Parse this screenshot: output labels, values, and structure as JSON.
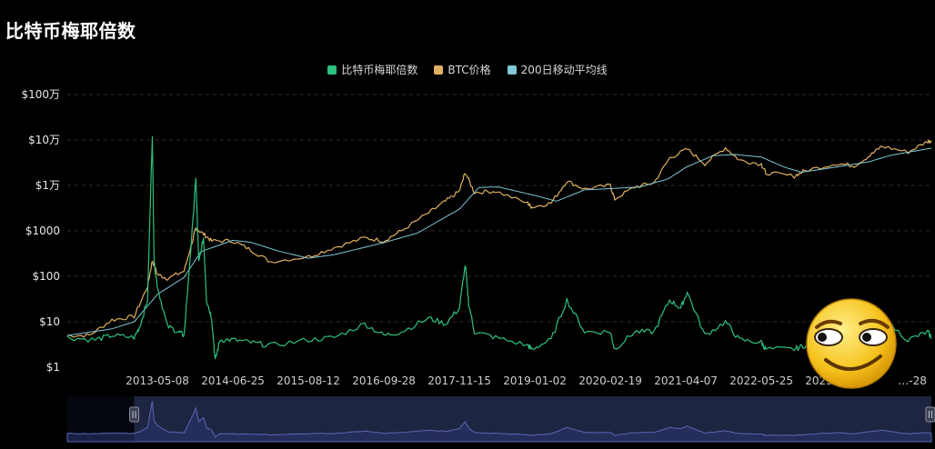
{
  "page": {
    "title": "比特币梅耶倍数"
  },
  "colors": {
    "mayer": "#2ec27e",
    "price": "#e0b060",
    "ma200": "#7fc8d4",
    "grid": "#2a2a2a",
    "navigator_fill": "#1d2540",
    "navigator_line": "#5b66b5"
  },
  "legend": [
    {
      "label": "比特币梅耶倍数",
      "color": "#2ec27e"
    },
    {
      "label": "BTC价格",
      "color": "#e0b060"
    },
    {
      "label": "200日移动平均线",
      "color": "#7fc8d4"
    }
  ],
  "chart_data": {
    "type": "line",
    "y_scale": "log",
    "ylim": [
      1,
      1000000
    ],
    "y_ticks": [
      {
        "value": 1000000,
        "label": "$100万"
      },
      {
        "value": 100000,
        "label": "$10万"
      },
      {
        "value": 10000,
        "label": "$1万"
      },
      {
        "value": 1000,
        "label": "$1000"
      },
      {
        "value": 100,
        "label": "$100"
      },
      {
        "value": 10,
        "label": "$10"
      },
      {
        "value": 1,
        "label": "$1"
      }
    ],
    "x_range": [
      "2012-01-01",
      "2024-12-10"
    ],
    "x_ticks": [
      "2013-05-08",
      "2014-06-25",
      "2015-08-12",
      "2016-09-28",
      "2017-11-15",
      "2019-01-02",
      "2020-02-19",
      "2021-04-07",
      "2022-05-25",
      "2023-07-12",
      "2024-08-28"
    ],
    "x_tick_labels": [
      "2013-05-08",
      "2014-06-25",
      "2015-08-12",
      "2016-09-28",
      "2017-11-15",
      "2019-01-02",
      "2020-02-19",
      "2021-04-07",
      "2022-05-25",
      "2023-07-12",
      "…-28"
    ],
    "series": [
      {
        "name": "BTC价格",
        "points": [
          [
            "2012-01-01",
            5
          ],
          [
            "2012-05-01",
            5
          ],
          [
            "2012-09-01",
            11
          ],
          [
            "2013-01-01",
            13
          ],
          [
            "2013-03-15",
            60
          ],
          [
            "2013-04-10",
            220
          ],
          [
            "2013-05-08",
            110
          ],
          [
            "2013-07-01",
            90
          ],
          [
            "2013-10-01",
            130
          ],
          [
            "2013-11-20",
            700
          ],
          [
            "2013-12-04",
            1150
          ],
          [
            "2014-01-15",
            850
          ],
          [
            "2014-03-01",
            600
          ],
          [
            "2014-06-25",
            600
          ],
          [
            "2014-10-01",
            380
          ],
          [
            "2015-01-15",
            210
          ],
          [
            "2015-08-12",
            270
          ],
          [
            "2016-01-01",
            430
          ],
          [
            "2016-06-15",
            700
          ],
          [
            "2016-09-28",
            605
          ],
          [
            "2017-01-01",
            1000
          ],
          [
            "2017-06-01",
            2500
          ],
          [
            "2017-09-01",
            4500
          ],
          [
            "2017-11-15",
            7500
          ],
          [
            "2017-12-17",
            19500
          ],
          [
            "2018-02-05",
            7000
          ],
          [
            "2018-06-01",
            7500
          ],
          [
            "2018-11-25",
            4000
          ],
          [
            "2018-12-15",
            3300
          ],
          [
            "2019-04-01",
            4100
          ],
          [
            "2019-06-26",
            12500
          ],
          [
            "2019-10-01",
            8300
          ],
          [
            "2020-02-19",
            10000
          ],
          [
            "2020-03-13",
            5000
          ],
          [
            "2020-07-01",
            9200
          ],
          [
            "2020-10-15",
            11500
          ],
          [
            "2021-01-08",
            40000
          ],
          [
            "2021-04-14",
            63000
          ],
          [
            "2021-07-20",
            30000
          ],
          [
            "2021-11-10",
            68000
          ],
          [
            "2022-01-24",
            36000
          ],
          [
            "2022-05-25",
            29500
          ],
          [
            "2022-06-18",
            19000
          ],
          [
            "2022-11-21",
            16000
          ],
          [
            "2023-01-15",
            21000
          ],
          [
            "2023-07-12",
            30500
          ],
          [
            "2023-10-15",
            27000
          ],
          [
            "2024-01-10",
            46000
          ],
          [
            "2024-03-14",
            73000
          ],
          [
            "2024-08-05",
            54000
          ],
          [
            "2024-11-20",
            94000
          ],
          [
            "2024-12-10",
            97000
          ]
        ]
      },
      {
        "name": "200日移动平均线",
        "points": [
          [
            "2012-01-01",
            5
          ],
          [
            "2012-09-01",
            7
          ],
          [
            "2013-01-01",
            10
          ],
          [
            "2013-05-08",
            40
          ],
          [
            "2013-10-01",
            95
          ],
          [
            "2014-01-01",
            350
          ],
          [
            "2014-06-25",
            620
          ],
          [
            "2014-10-01",
            560
          ],
          [
            "2015-03-01",
            360
          ],
          [
            "2015-08-12",
            250
          ],
          [
            "2016-01-01",
            300
          ],
          [
            "2016-09-28",
            550
          ],
          [
            "2017-04-01",
            900
          ],
          [
            "2017-11-15",
            3000
          ],
          [
            "2018-03-01",
            9000
          ],
          [
            "2018-06-15",
            9300
          ],
          [
            "2019-01-02",
            6000
          ],
          [
            "2019-05-01",
            4500
          ],
          [
            "2019-10-01",
            8000
          ],
          [
            "2020-02-19",
            8500
          ],
          [
            "2020-08-01",
            9300
          ],
          [
            "2021-01-01",
            14000
          ],
          [
            "2021-04-07",
            25000
          ],
          [
            "2021-09-01",
            45000
          ],
          [
            "2021-12-31",
            48000
          ],
          [
            "2022-05-25",
            42000
          ],
          [
            "2022-10-01",
            25000
          ],
          [
            "2023-01-01",
            19500
          ],
          [
            "2023-07-12",
            25500
          ],
          [
            "2024-01-01",
            33000
          ],
          [
            "2024-05-01",
            46000
          ],
          [
            "2024-12-10",
            66000
          ]
        ]
      },
      {
        "name": "比特币梅耶倍数",
        "points": [
          [
            "2012-01-01",
            4.5
          ],
          [
            "2012-06-01",
            4.0
          ],
          [
            "2012-09-01",
            5.0
          ],
          [
            "2013-01-01",
            4.5
          ],
          [
            "2013-02-01",
            8
          ],
          [
            "2013-03-15",
            30
          ],
          [
            "2013-04-10",
            130000
          ],
          [
            "2013-04-20",
            200
          ],
          [
            "2013-05-08",
            60
          ],
          [
            "2013-07-01",
            8
          ],
          [
            "2013-09-01",
            6
          ],
          [
            "2013-10-01",
            5
          ],
          [
            "2013-11-20",
            2000
          ],
          [
            "2013-12-04",
            15000
          ],
          [
            "2013-12-20",
            200
          ],
          [
            "2014-01-15",
            700
          ],
          [
            "2014-02-01",
            30
          ],
          [
            "2014-03-01",
            12
          ],
          [
            "2014-03-20",
            1.4
          ],
          [
            "2014-04-15",
            4
          ],
          [
            "2014-06-25",
            4
          ],
          [
            "2014-10-01",
            3.5
          ],
          [
            "2015-01-15",
            3
          ],
          [
            "2015-08-12",
            4
          ],
          [
            "2016-01-01",
            4.5
          ],
          [
            "2016-06-15",
            9
          ],
          [
            "2016-09-28",
            5
          ],
          [
            "2017-01-01",
            6
          ],
          [
            "2017-06-01",
            12
          ],
          [
            "2017-09-01",
            9
          ],
          [
            "2017-11-15",
            20
          ],
          [
            "2017-12-17",
            180
          ],
          [
            "2018-01-05",
            25
          ],
          [
            "2018-02-05",
            6
          ],
          [
            "2018-06-01",
            4.5
          ],
          [
            "2018-11-25",
            3
          ],
          [
            "2018-12-15",
            2.5
          ],
          [
            "2019-04-01",
            4
          ],
          [
            "2019-06-26",
            30
          ],
          [
            "2019-10-01",
            6
          ],
          [
            "2020-02-19",
            6
          ],
          [
            "2020-03-13",
            2.5
          ],
          [
            "2020-07-01",
            6
          ],
          [
            "2020-10-15",
            6
          ],
          [
            "2021-01-08",
            30
          ],
          [
            "2021-03-10",
            20
          ],
          [
            "2021-04-14",
            45
          ],
          [
            "2021-07-20",
            5
          ],
          [
            "2021-11-10",
            10
          ],
          [
            "2022-01-24",
            4
          ],
          [
            "2022-05-25",
            3.5
          ],
          [
            "2022-06-18",
            2.5
          ],
          [
            "2022-11-21",
            2.5
          ],
          [
            "2023-01-15",
            3
          ],
          [
            "2023-07-12",
            6
          ],
          [
            "2023-10-15",
            4
          ],
          [
            "2024-01-10",
            8
          ],
          [
            "2024-03-14",
            12
          ],
          [
            "2024-08-05",
            4
          ],
          [
            "2024-11-20",
            6
          ],
          [
            "2024-12-10",
            4.5
          ]
        ]
      }
    ],
    "navigator": {
      "series": "比特币梅耶倍数",
      "selected_range": [
        "2013-01-01",
        "2024-12-10"
      ]
    }
  }
}
